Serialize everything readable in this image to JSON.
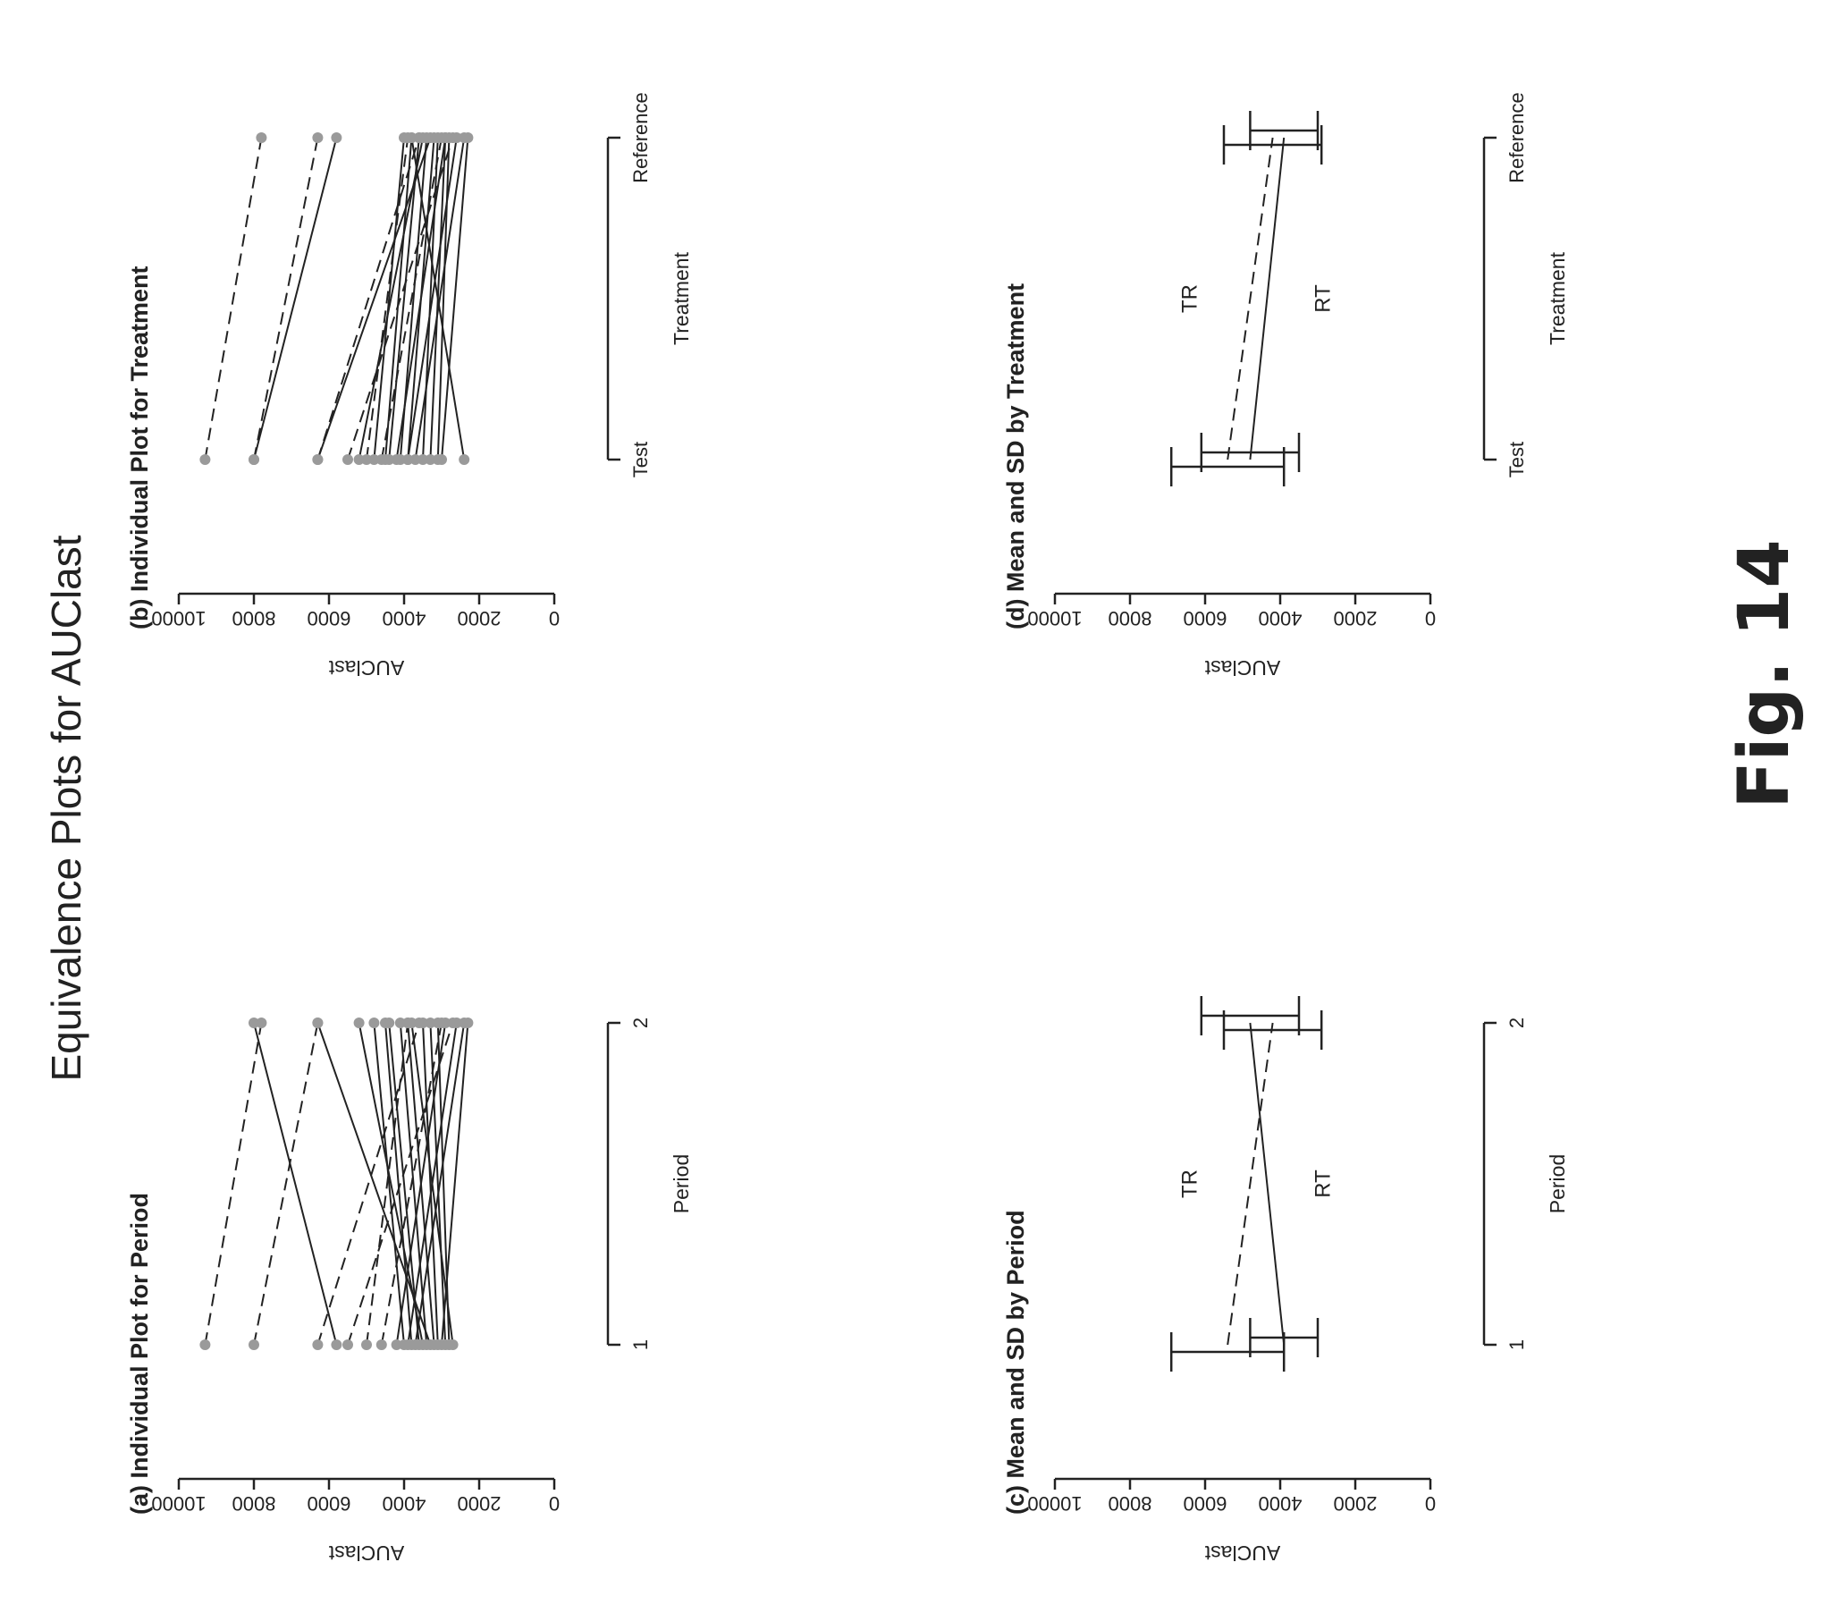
{
  "page": {
    "title": "Equivalence Plots for AUClast",
    "figure_label": "Fig. 14"
  },
  "colors": {
    "ink": "#222222",
    "marker": "#9a9a9a",
    "background": "#ffffff"
  },
  "chart_data": [
    {
      "type": "line",
      "title": "(a) Individual Plot for Period",
      "xlabel": "Period",
      "ylabel": "AUClast",
      "categories": [
        "1",
        "2"
      ],
      "ylim": [
        0,
        10000
      ],
      "yticks": [
        "0",
        "2000",
        "4000",
        "6000",
        "8000",
        "10000"
      ],
      "series": [
        {
          "values": [
            9300,
            7800
          ],
          "dash": true
        },
        {
          "values": [
            8000,
            6300
          ],
          "dash": true
        },
        {
          "values": [
            6300,
            3600
          ],
          "dash": true
        },
        {
          "values": [
            5500,
            2700
          ],
          "dash": true
        },
        {
          "values": [
            5000,
            3900
          ],
          "dash": true
        },
        {
          "values": [
            4600,
            3000
          ],
          "dash": true
        },
        {
          "values": [
            5800,
            8000
          ],
          "dash": false
        },
        {
          "values": [
            3300,
            6300
          ],
          "dash": false
        },
        {
          "values": [
            3500,
            5200
          ],
          "dash": false
        },
        {
          "values": [
            4000,
            4800
          ],
          "dash": false
        },
        {
          "values": [
            3800,
            4500
          ],
          "dash": false
        },
        {
          "values": [
            3600,
            4400
          ],
          "dash": false
        },
        {
          "values": [
            3400,
            4100
          ],
          "dash": false
        },
        {
          "values": [
            3200,
            3900
          ],
          "dash": false
        },
        {
          "values": [
            3100,
            3500
          ],
          "dash": false
        },
        {
          "values": [
            2900,
            3300
          ],
          "dash": false
        },
        {
          "values": [
            2800,
            3100
          ],
          "dash": false
        },
        {
          "values": [
            4200,
            2900
          ],
          "dash": false
        },
        {
          "values": [
            3900,
            2600
          ],
          "dash": false
        },
        {
          "values": [
            3700,
            2400
          ],
          "dash": false
        },
        {
          "values": [
            3000,
            2300
          ],
          "dash": false
        },
        {
          "values": [
            2700,
            3800
          ],
          "dash": false
        }
      ]
    },
    {
      "type": "line",
      "title": "(b) Individual Plot for Treatment",
      "xlabel": "Treatment",
      "ylabel": "AUClast",
      "categories": [
        "Test",
        "Reference"
      ],
      "ylim": [
        0,
        10000
      ],
      "yticks": [
        "0",
        "2000",
        "4000",
        "6000",
        "8000",
        "10000"
      ],
      "series": [
        {
          "values": [
            9300,
            7800
          ],
          "dash": true
        },
        {
          "values": [
            8000,
            6300
          ],
          "dash": true
        },
        {
          "values": [
            6300,
            3600
          ],
          "dash": true
        },
        {
          "values": [
            5500,
            2700
          ],
          "dash": true
        },
        {
          "values": [
            5000,
            3900
          ],
          "dash": true
        },
        {
          "values": [
            4600,
            3000
          ],
          "dash": true
        },
        {
          "values": [
            8000,
            5800
          ],
          "dash": false
        },
        {
          "values": [
            6300,
            3300
          ],
          "dash": false
        },
        {
          "values": [
            5200,
            3500
          ],
          "dash": false
        },
        {
          "values": [
            4800,
            4000
          ],
          "dash": false
        },
        {
          "values": [
            4500,
            3800
          ],
          "dash": false
        },
        {
          "values": [
            4400,
            3600
          ],
          "dash": false
        },
        {
          "values": [
            4100,
            3400
          ],
          "dash": false
        },
        {
          "values": [
            3900,
            3200
          ],
          "dash": false
        },
        {
          "values": [
            3500,
            3100
          ],
          "dash": false
        },
        {
          "values": [
            3300,
            2900
          ],
          "dash": false
        },
        {
          "values": [
            3100,
            2800
          ],
          "dash": false
        },
        {
          "values": [
            4200,
            2900
          ],
          "dash": false
        },
        {
          "values": [
            3900,
            2600
          ],
          "dash": false
        },
        {
          "values": [
            3700,
            2400
          ],
          "dash": false
        },
        {
          "values": [
            3000,
            2300
          ],
          "dash": false
        },
        {
          "values": [
            2400,
            3800
          ],
          "dash": false
        }
      ]
    },
    {
      "type": "line",
      "title": "(c) Mean and SD by Period",
      "xlabel": "Period",
      "ylabel": "AUClast",
      "categories": [
        "1",
        "2"
      ],
      "ylim": [
        0,
        10000
      ],
      "yticks": [
        "0",
        "2000",
        "4000",
        "6000",
        "8000",
        "10000"
      ],
      "series": [
        {
          "name": "TR",
          "values": [
            5400,
            4200
          ],
          "sd": [
            1500,
            1300
          ],
          "dash": true
        },
        {
          "name": "RT",
          "values": [
            3900,
            4800
          ],
          "sd": [
            900,
            1300
          ],
          "dash": false
        }
      ]
    },
    {
      "type": "line",
      "title": "(d) Mean and SD by Treatment",
      "xlabel": "Treatment",
      "ylabel": "AUClast",
      "categories": [
        "Test",
        "Reference"
      ],
      "ylim": [
        0,
        10000
      ],
      "yticks": [
        "0",
        "2000",
        "4000",
        "6000",
        "8000",
        "10000"
      ],
      "series": [
        {
          "name": "TR",
          "values": [
            5400,
            4200
          ],
          "sd": [
            1500,
            1300
          ],
          "dash": true
        },
        {
          "name": "RT",
          "values": [
            4800,
            3900
          ],
          "sd": [
            1300,
            900
          ],
          "dash": false
        }
      ]
    }
  ]
}
